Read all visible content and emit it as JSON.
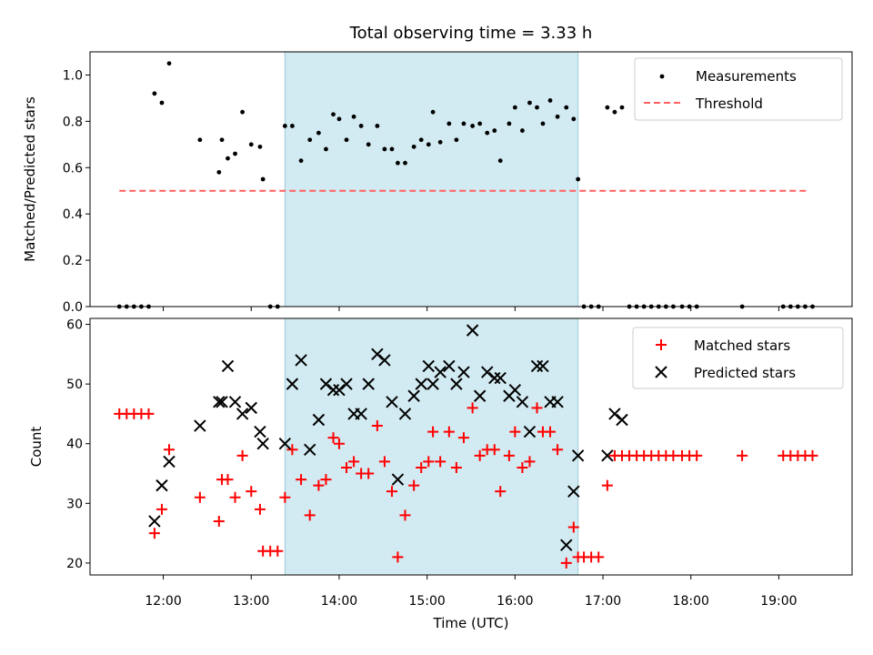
{
  "chart_data": [
    {
      "type": "scatter",
      "title": "Total observing time = 3.33 h",
      "ylabel": "Matched/Predicted stars",
      "ylim": [
        0,
        1.1
      ],
      "yticks": [
        "0.0",
        "0.2",
        "0.4",
        "0.6",
        "0.8",
        "1.0"
      ],
      "shaded_interval": [
        "13:23",
        "16:43"
      ],
      "shade_color": "#add8e6",
      "legend": {
        "position": "top-right",
        "entries": [
          "Measurements",
          "Threshold"
        ]
      },
      "threshold": {
        "name": "Threshold",
        "value": 0.5,
        "x_range": [
          "11:30",
          "19:20"
        ],
        "style": "dashed",
        "color": "#ff6060"
      },
      "series": [
        {
          "name": "Measurements",
          "marker": "dot",
          "color": "#000000",
          "points": [
            [
              "11:30",
              0
            ],
            [
              "11:35",
              0
            ],
            [
              "11:40",
              0
            ],
            [
              "11:45",
              0
            ],
            [
              "11:50",
              0
            ],
            [
              "11:54",
              0.92
            ],
            [
              "11:59",
              0.88
            ],
            [
              "12:04",
              1.05
            ],
            [
              "12:25",
              0.72
            ],
            [
              "12:38",
              0.58
            ],
            [
              "12:40",
              0.72
            ],
            [
              "12:44",
              0.64
            ],
            [
              "12:49",
              0.66
            ],
            [
              "12:54",
              0.84
            ],
            [
              "13:00",
              0.7
            ],
            [
              "13:06",
              0.69
            ],
            [
              "13:08",
              0.55
            ],
            [
              "13:13",
              0
            ],
            [
              "13:18",
              0
            ],
            [
              "13:23",
              0.78
            ],
            [
              "13:28",
              0.78
            ],
            [
              "13:34",
              0.63
            ],
            [
              "13:40",
              0.72
            ],
            [
              "13:46",
              0.75
            ],
            [
              "13:51",
              0.68
            ],
            [
              "13:56",
              0.83
            ],
            [
              "14:00",
              0.81
            ],
            [
              "14:05",
              0.72
            ],
            [
              "14:10",
              0.82
            ],
            [
              "14:15",
              0.78
            ],
            [
              "14:20",
              0.7
            ],
            [
              "14:26",
              0.78
            ],
            [
              "14:31",
              0.68
            ],
            [
              "14:36",
              0.68
            ],
            [
              "14:40",
              0.62
            ],
            [
              "14:45",
              0.62
            ],
            [
              "14:51",
              0.69
            ],
            [
              "14:56",
              0.72
            ],
            [
              "15:01",
              0.7
            ],
            [
              "15:04",
              0.84
            ],
            [
              "15:09",
              0.71
            ],
            [
              "15:15",
              0.79
            ],
            [
              "15:20",
              0.72
            ],
            [
              "15:25",
              0.79
            ],
            [
              "15:31",
              0.78
            ],
            [
              "15:36",
              0.79
            ],
            [
              "15:41",
              0.75
            ],
            [
              "15:46",
              0.76
            ],
            [
              "15:50",
              0.63
            ],
            [
              "15:56",
              0.79
            ],
            [
              "16:00",
              0.86
            ],
            [
              "16:05",
              0.76
            ],
            [
              "16:10",
              0.88
            ],
            [
              "16:15",
              0.86
            ],
            [
              "16:19",
              0.79
            ],
            [
              "16:24",
              0.89
            ],
            [
              "16:29",
              0.82
            ],
            [
              "16:35",
              0.86
            ],
            [
              "16:40",
              0.81
            ],
            [
              "16:43",
              0.55
            ],
            [
              "16:47",
              0
            ],
            [
              "16:52",
              0
            ],
            [
              "16:57",
              0
            ],
            [
              "17:03",
              0.86
            ],
            [
              "17:08",
              0.84
            ],
            [
              "17:13",
              0.86
            ],
            [
              "17:18",
              0
            ],
            [
              "17:23",
              0
            ],
            [
              "17:28",
              0
            ],
            [
              "17:33",
              0
            ],
            [
              "17:38",
              0
            ],
            [
              "17:43",
              0
            ],
            [
              "17:48",
              0
            ],
            [
              "17:54",
              0
            ],
            [
              "17:59",
              0
            ],
            [
              "18:04",
              0
            ],
            [
              "18:35",
              0
            ],
            [
              "19:03",
              0
            ],
            [
              "19:08",
              0
            ],
            [
              "19:13",
              0
            ],
            [
              "19:18",
              0
            ],
            [
              "19:23",
              0
            ]
          ]
        }
      ]
    },
    {
      "type": "scatter",
      "ylabel": "Count",
      "xlabel": "Time (UTC)",
      "ylim": [
        18,
        61
      ],
      "yticks": [
        "20",
        "30",
        "40",
        "50",
        "60"
      ],
      "xlim": [
        "11:10",
        "19:50"
      ],
      "xticks": [
        "12:00",
        "13:00",
        "14:00",
        "15:00",
        "16:00",
        "17:00",
        "18:00",
        "19:00"
      ],
      "shaded_interval": [
        "13:23",
        "16:43"
      ],
      "shade_color": "#add8e6",
      "legend": {
        "position": "top-right",
        "entries": [
          "Matched stars",
          "Predicted stars"
        ]
      },
      "series": [
        {
          "name": "Matched stars",
          "marker": "plus",
          "color": "#ff0000",
          "points": [
            [
              "11:30",
              45
            ],
            [
              "11:35",
              45
            ],
            [
              "11:40",
              45
            ],
            [
              "11:45",
              45
            ],
            [
              "11:50",
              45
            ],
            [
              "11:54",
              25
            ],
            [
              "11:59",
              29
            ],
            [
              "12:04",
              39
            ],
            [
              "12:25",
              31
            ],
            [
              "12:38",
              27
            ],
            [
              "12:40",
              34
            ],
            [
              "12:44",
              34
            ],
            [
              "12:49",
              31
            ],
            [
              "12:54",
              38
            ],
            [
              "13:00",
              32
            ],
            [
              "13:06",
              29
            ],
            [
              "13:08",
              22
            ],
            [
              "13:13",
              22
            ],
            [
              "13:18",
              22
            ],
            [
              "13:23",
              31
            ],
            [
              "13:28",
              39
            ],
            [
              "13:34",
              34
            ],
            [
              "13:40",
              28
            ],
            [
              "13:46",
              33
            ],
            [
              "13:51",
              34
            ],
            [
              "13:56",
              41
            ],
            [
              "14:00",
              40
            ],
            [
              "14:05",
              36
            ],
            [
              "14:10",
              37
            ],
            [
              "14:15",
              35
            ],
            [
              "14:20",
              35
            ],
            [
              "14:26",
              43
            ],
            [
              "14:31",
              37
            ],
            [
              "14:36",
              32
            ],
            [
              "14:40",
              21
            ],
            [
              "14:45",
              28
            ],
            [
              "14:51",
              33
            ],
            [
              "14:56",
              36
            ],
            [
              "15:01",
              37
            ],
            [
              "15:04",
              42
            ],
            [
              "15:09",
              37
            ],
            [
              "15:15",
              42
            ],
            [
              "15:20",
              36
            ],
            [
              "15:25",
              41
            ],
            [
              "15:31",
              46
            ],
            [
              "15:36",
              38
            ],
            [
              "15:41",
              39
            ],
            [
              "15:46",
              39
            ],
            [
              "15:50",
              32
            ],
            [
              "15:56",
              38
            ],
            [
              "16:00",
              42
            ],
            [
              "16:05",
              36
            ],
            [
              "16:10",
              37
            ],
            [
              "16:15",
              46
            ],
            [
              "16:19",
              42
            ],
            [
              "16:24",
              42
            ],
            [
              "16:29",
              39
            ],
            [
              "16:35",
              20
            ],
            [
              "16:40",
              26
            ],
            [
              "16:43",
              21
            ],
            [
              "16:47",
              21
            ],
            [
              "16:52",
              21
            ],
            [
              "16:57",
              21
            ],
            [
              "17:03",
              33
            ],
            [
              "17:08",
              38
            ],
            [
              "17:13",
              38
            ],
            [
              "17:18",
              38
            ],
            [
              "17:23",
              38
            ],
            [
              "17:28",
              38
            ],
            [
              "17:33",
              38
            ],
            [
              "17:38",
              38
            ],
            [
              "17:43",
              38
            ],
            [
              "17:48",
              38
            ],
            [
              "17:54",
              38
            ],
            [
              "17:59",
              38
            ],
            [
              "18:04",
              38
            ],
            [
              "18:35",
              38
            ],
            [
              "19:03",
              38
            ],
            [
              "19:08",
              38
            ],
            [
              "19:13",
              38
            ],
            [
              "19:18",
              38
            ],
            [
              "19:23",
              38
            ]
          ]
        },
        {
          "name": "Predicted stars",
          "marker": "x",
          "color": "#000000",
          "points": [
            [
              "11:54",
              27
            ],
            [
              "11:59",
              33
            ],
            [
              "12:04",
              37
            ],
            [
              "12:25",
              43
            ],
            [
              "12:38",
              47
            ],
            [
              "12:40",
              47
            ],
            [
              "12:44",
              53
            ],
            [
              "12:49",
              47
            ],
            [
              "12:54",
              45
            ],
            [
              "13:00",
              46
            ],
            [
              "13:06",
              42
            ],
            [
              "13:08",
              40
            ],
            [
              "13:23",
              40
            ],
            [
              "13:28",
              50
            ],
            [
              "13:34",
              54
            ],
            [
              "13:40",
              39
            ],
            [
              "13:46",
              44
            ],
            [
              "13:51",
              50
            ],
            [
              "13:56",
              49
            ],
            [
              "14:00",
              49
            ],
            [
              "14:05",
              50
            ],
            [
              "14:10",
              45
            ],
            [
              "14:15",
              45
            ],
            [
              "14:20",
              50
            ],
            [
              "14:26",
              55
            ],
            [
              "14:31",
              54
            ],
            [
              "14:36",
              47
            ],
            [
              "14:40",
              34
            ],
            [
              "14:45",
              45
            ],
            [
              "14:51",
              48
            ],
            [
              "14:56",
              50
            ],
            [
              "15:01",
              53
            ],
            [
              "15:04",
              50
            ],
            [
              "15:09",
              52
            ],
            [
              "15:15",
              53
            ],
            [
              "15:20",
              50
            ],
            [
              "15:25",
              52
            ],
            [
              "15:31",
              59
            ],
            [
              "15:36",
              48
            ],
            [
              "15:41",
              52
            ],
            [
              "15:46",
              51
            ],
            [
              "15:50",
              51
            ],
            [
              "15:56",
              48
            ],
            [
              "16:00",
              49
            ],
            [
              "16:05",
              47
            ],
            [
              "16:10",
              42
            ],
            [
              "16:15",
              53
            ],
            [
              "16:19",
              53
            ],
            [
              "16:24",
              47
            ],
            [
              "16:29",
              47
            ],
            [
              "16:35",
              23
            ],
            [
              "16:40",
              32
            ],
            [
              "16:43",
              38
            ],
            [
              "17:03",
              38
            ],
            [
              "17:08",
              45
            ],
            [
              "17:13",
              44
            ]
          ]
        }
      ]
    }
  ]
}
